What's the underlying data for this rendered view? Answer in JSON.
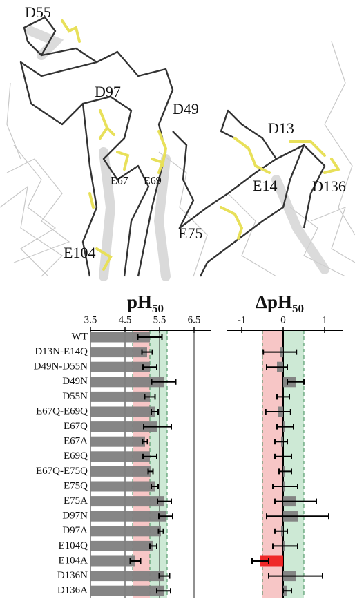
{
  "structure_labels": [
    "D55",
    "D97",
    "D49",
    "D13",
    "E67",
    "E69",
    "E14",
    "D136",
    "E75",
    "E104"
  ],
  "chart_data": [
    {
      "type": "hbar",
      "title": "pH",
      "title_subscript": "50",
      "categories": [
        "WT",
        "D13N-E14Q",
        "D49N-D55N",
        "D49N",
        "D55N",
        "E67Q-E69Q",
        "E67Q",
        "E67A",
        "E69Q",
        "E67Q-E75Q",
        "E75Q",
        "E75A",
        "D97N",
        "D97A",
        "E104Q",
        "E104A",
        "D136N",
        "D136A"
      ],
      "values": [
        5.22,
        5.14,
        5.22,
        5.62,
        5.22,
        5.36,
        5.44,
        5.08,
        5.22,
        5.24,
        5.36,
        5.64,
        5.68,
        5.54,
        5.32,
        4.8,
        5.64,
        5.62
      ],
      "errors": [
        0.35,
        0.15,
        0.2,
        0.35,
        0.15,
        0.1,
        0.4,
        0.07,
        0.2,
        0.07,
        0.1,
        0.2,
        0.2,
        0.07,
        0.1,
        0.15,
        0.15,
        0.2
      ],
      "color": "#7f7f7f",
      "xlim": [
        3.5,
        7.0
      ],
      "xticks": [
        3.5,
        4.5,
        5.5,
        6.5
      ],
      "grid": true,
      "bands": [
        {
          "range": [
            4.72,
            5.22
          ],
          "color": "#f7c6c6"
        },
        {
          "range": [
            5.22,
            5.72
          ],
          "color": "#cde9d5"
        }
      ]
    },
    {
      "type": "hbar",
      "title": "ΔpH",
      "title_subscript": "50",
      "values": [
        0,
        -0.08,
        -0.15,
        0.3,
        0,
        -0.12,
        0.05,
        -0.05,
        0,
        0.05,
        0.05,
        0.3,
        0.35,
        -0.05,
        0.05,
        -0.55,
        0.3,
        0.1
      ],
      "errors": [
        null,
        0.4,
        0.25,
        0.2,
        0.15,
        0.3,
        0.2,
        0.15,
        0.2,
        0.15,
        0.3,
        0.5,
        0.75,
        0.15,
        0.3,
        0.2,
        0.65,
        0.1
      ],
      "bar_colors": [
        "#7f7f7f",
        "#7f7f7f",
        "#7f7f7f",
        "#7f7f7f",
        "#7f7f7f",
        "#7f7f7f",
        "#7f7f7f",
        "#7f7f7f",
        "#7f7f7f",
        "#7f7f7f",
        "#7f7f7f",
        "#7f7f7f",
        "#7f7f7f",
        "#7f7f7f",
        "#7f7f7f",
        "#ee2020",
        "#7f7f7f",
        "#7f7f7f"
      ],
      "xlim": [
        -1.35,
        1.45
      ],
      "xticks": [
        -1,
        0,
        1
      ],
      "grid": false,
      "bands": [
        {
          "range": [
            -0.5,
            0
          ],
          "color": "#f7c6c6"
        },
        {
          "range": [
            0,
            0.5
          ],
          "color": "#cde9d5"
        }
      ]
    }
  ]
}
